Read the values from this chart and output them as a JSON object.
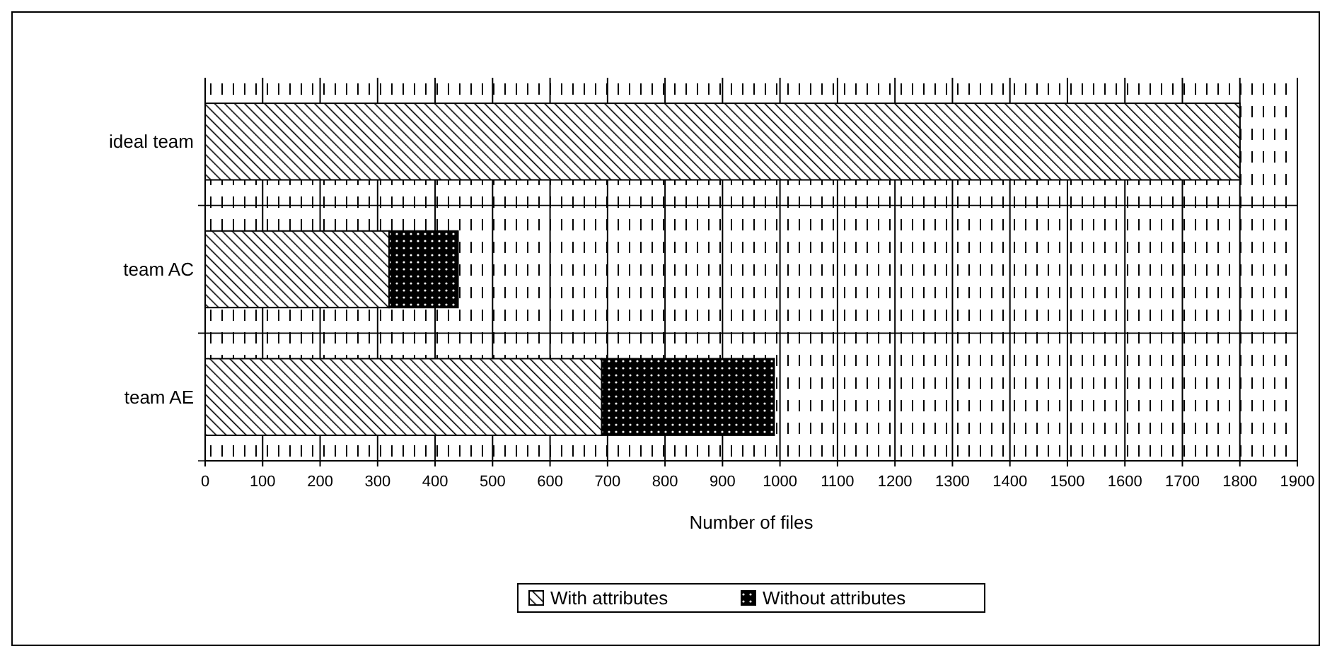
{
  "chart_data": {
    "type": "bar",
    "orientation": "horizontal",
    "stacked": true,
    "categories": [
      "ideal team",
      "team AC",
      "team AE"
    ],
    "series": [
      {
        "name": "With attributes",
        "color": "#000000",
        "values": [
          1800,
          320,
          690
        ]
      },
      {
        "name": "Without attributes",
        "color": "#000000",
        "values": [
          0,
          120,
          300
        ]
      }
    ],
    "xlabel": "Number of files",
    "xlim": [
      0,
      1900
    ],
    "xticks": [
      0,
      100,
      200,
      300,
      400,
      500,
      600,
      700,
      800,
      900,
      1000,
      1100,
      1200,
      1300,
      1400,
      1500,
      1600,
      1700,
      1800,
      1900
    ],
    "grid": "x",
    "legend": "bottom"
  }
}
